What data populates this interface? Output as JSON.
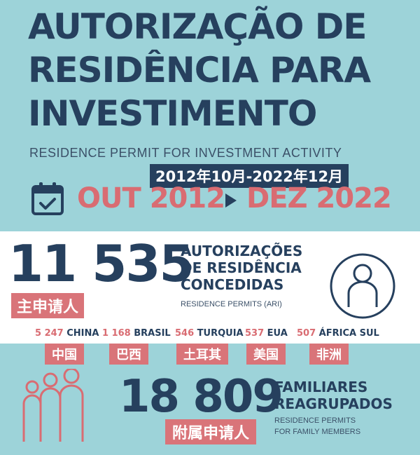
{
  "title": {
    "line1": "AUTORIZAÇÃO DE",
    "line2": "RESIDÊNCIA PARA",
    "line3": "INVESTIMENTO",
    "subtitle_en": "RESIDENCE PERMIT FOR INVESTMENT ACTIVITY",
    "date_range_cn": "2012年10月-2022年12月"
  },
  "period": {
    "start": "OUT 2012",
    "end": "DEZ 2022",
    "icon": "calendar-check-icon",
    "arrow_icon": "play-arrow-icon"
  },
  "permits": {
    "count": "11 535",
    "heading_line1": "AUTORIZAÇÕES",
    "heading_line2": "DE RESIDÊNCIA",
    "heading_line3": "CONCEDIDAS",
    "sub_en": "RESIDENCE PERMITS  (ARI)",
    "cn_label": "主申请人",
    "icon": "person-circle-icon"
  },
  "countries": [
    {
      "count": "5 247",
      "name": "CHINA",
      "cn": "中国"
    },
    {
      "count": "1 168",
      "name": "BRASIL",
      "cn": "巴西"
    },
    {
      "count": "546",
      "name": "TURQUIA",
      "cn": "土耳其"
    },
    {
      "count": "537",
      "name": "EUA",
      "cn": "美国"
    },
    {
      "count": "507",
      "name": "ÁFRICA SUL",
      "cn": "非洲"
    }
  ],
  "family": {
    "count": "18 809",
    "heading_line1": "FAMILIARES",
    "heading_line2": "REAGRUPADOS",
    "sub_en_line1": "RESIDENCE PERMITS",
    "sub_en_line2": "FOR FAMILY MEMBERS",
    "cn_label": "附属申请人",
    "icon": "family-group-icon"
  },
  "colors": {
    "background": "#9dd3d9",
    "navy": "#26405e",
    "coral": "#d96c72",
    "white_band": "#ffffff"
  }
}
